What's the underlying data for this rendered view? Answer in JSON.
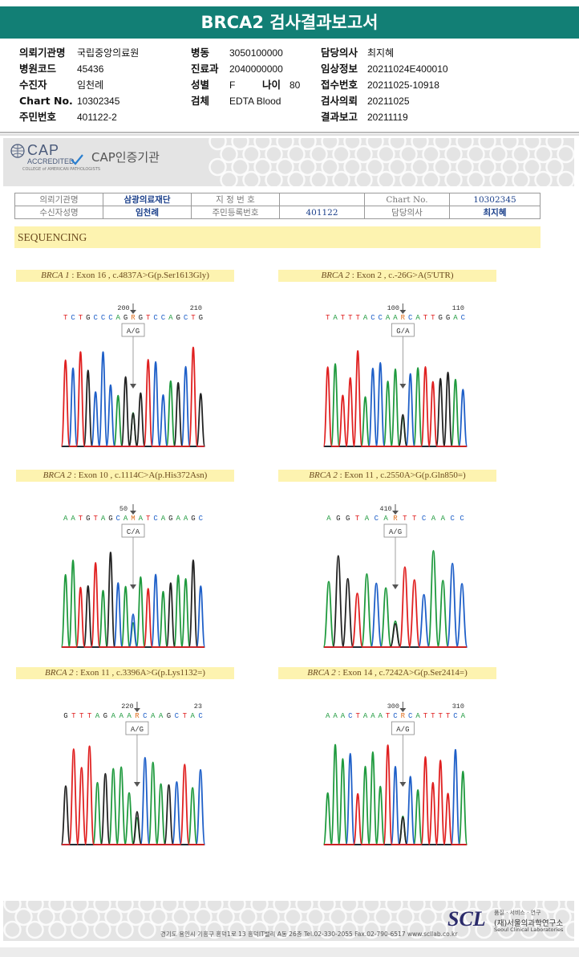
{
  "header": {
    "title": "BRCA2 검사결과보고서"
  },
  "info": {
    "col1": [
      {
        "k": "의뢰기관명",
        "v": "국립중앙의료원"
      },
      {
        "k": "병원코드",
        "v": "45436"
      },
      {
        "k": "수진자",
        "v": "임천례"
      },
      {
        "k": "Chart No.",
        "v": "10302345"
      },
      {
        "k": "주민번호",
        "v": "401122-2"
      }
    ],
    "col2": [
      {
        "k": "병동",
        "v": "3050100000"
      },
      {
        "k": "진료과",
        "v": "2040000000"
      },
      {
        "k": "성별",
        "v": "F"
      },
      {
        "k": "검체",
        "v": "EDTA Blood"
      }
    ],
    "age_label": "나이",
    "age_value": "80",
    "col3": [
      {
        "k": "담당의사",
        "v": "최지혜"
      },
      {
        "k": "임상정보",
        "v": "20211024E400010"
      },
      {
        "k": "접수번호",
        "v": "20211025-10918"
      },
      {
        "k": "검사의뢰",
        "v": "20211025"
      },
      {
        "k": "결과보고",
        "v": "20211119"
      }
    ]
  },
  "cap": {
    "logo_text": "CAP",
    "accredited": "ACCREDITED",
    "mini": "COLLEGE of AMERICAN PATHOLOGISTS",
    "label": "CAP인증기관"
  },
  "patient_table": {
    "r1": [
      "의뢰기관명",
      "삼광의료재단",
      "지 정 번 호",
      "",
      "Chart No.",
      "10302345"
    ],
    "r2": [
      "수신자성명",
      "임천례",
      "주민등록번호",
      "401122",
      "담당의사",
      "최지혜"
    ]
  },
  "section": {
    "title": "SEQUENCING"
  },
  "panels": [
    {
      "gene": "BRCA 1",
      "rest": " : Exon 16 , c.4837A>G(p.Ser1613Gly)",
      "bases": "TCTGCCCAGRGTCCAGCTG",
      "num1": "200",
      "num2": "210",
      "call": "A/G"
    },
    {
      "gene": "BRCA 2",
      "rest": " : Exon 2 , c.-26G>A(5'UTR)",
      "bases": "TATTTACCAARCATTGGAC",
      "num1": "100",
      "num2": "110",
      "call": "G/A"
    },
    {
      "gene": "BRCA 2",
      "rest": " : Exon 10 , c.1114C>A(p.His372Asn)",
      "bases": "AATGTAGCAMATCAGAAGC",
      "num1": "50",
      "num2": "",
      "call": "C/A"
    },
    {
      "gene": "BRCA 2",
      "rest": " : Exon 11 , c.2550A>G(p.Gln850=)",
      "bases": "AGGTACARTTCAACC",
      "num1": "410",
      "num2": "",
      "call": "A/G"
    },
    {
      "gene": "BRCA 2",
      "rest": " : Exon 11 , c.3396A>G(p.Lys1132=)",
      "bases": "GTTTAGAAARCAAGCTAC",
      "num1": "220",
      "num2": "23",
      "call": "A/G"
    },
    {
      "gene": "BRCA 2",
      "rest": " : Exon 14 , c.7242A>G(p.Ser2414=)",
      "bases": "AAACTAAATCRCATTTTCA",
      "num1": "300",
      "num2": "310",
      "call": "A/G"
    }
  ],
  "footer": {
    "address": "경기도 용인시 기흥구 흥덕1로 13 흥덕IT밸리 A동 26층  Tel.02-330-2055  Fax.02-790-6517  www.scllab.co.kr",
    "scl": "SCL",
    "motto": "품질 · 서비스 · 연구",
    "name": "(재)서울의과학연구소",
    "eng": "Seoul Clinical Laboratories"
  },
  "colors": {
    "teal": "#127f75",
    "A": "#1f9a3e",
    "C": "#1e5fc8",
    "G": "#222222",
    "T": "#e02020"
  }
}
